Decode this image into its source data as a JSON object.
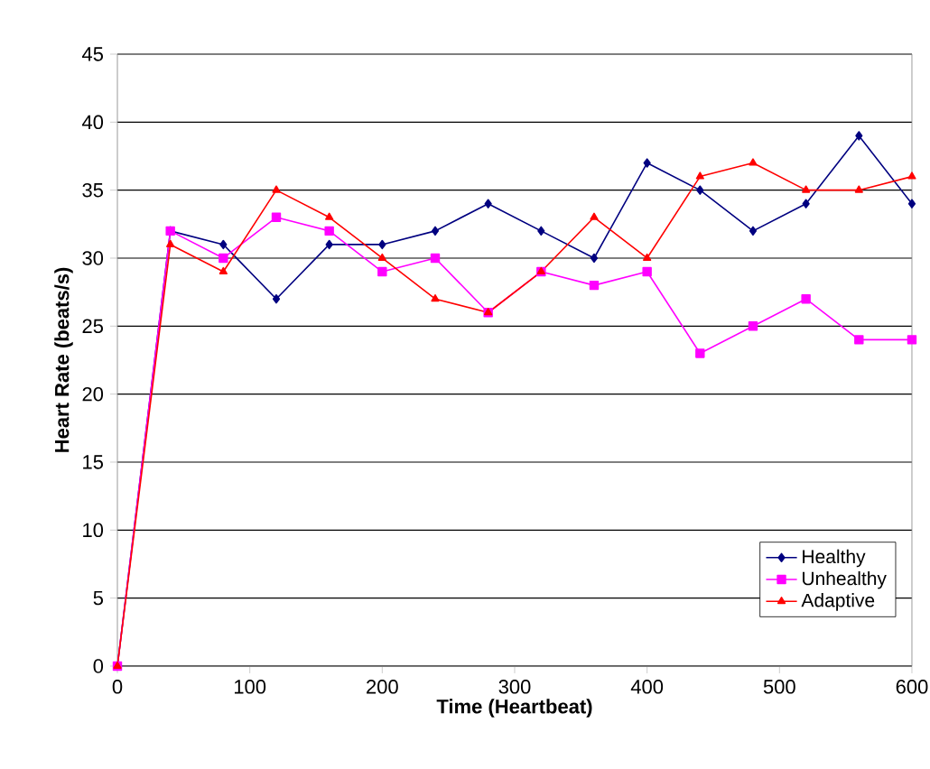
{
  "chart_data": {
    "type": "line",
    "xlabel": "Time (Heartbeat)",
    "ylabel": "Heart Rate (beats/s)",
    "x": [
      0,
      40,
      80,
      120,
      160,
      200,
      240,
      280,
      320,
      360,
      400,
      440,
      480,
      520,
      560,
      600
    ],
    "series": [
      {
        "name": "Healthy",
        "color": "#000080",
        "marker": "diamond",
        "values": [
          0,
          32,
          31,
          27,
          31,
          31,
          32,
          34,
          32,
          30,
          37,
          35,
          32,
          34,
          39,
          34
        ]
      },
      {
        "name": "Unhealthy",
        "color": "#ff00ff",
        "marker": "square",
        "values": [
          0,
          32,
          30,
          33,
          32,
          29,
          30,
          26,
          29,
          28,
          29,
          23,
          25,
          27,
          24,
          24
        ]
      },
      {
        "name": "Adaptive",
        "color": "#ff0000",
        "marker": "triangle",
        "values": [
          0,
          31,
          29,
          35,
          33,
          30,
          27,
          26,
          29,
          33,
          30,
          36,
          37,
          35,
          35,
          36
        ]
      }
    ],
    "xlim": [
      0,
      600
    ],
    "xticks": [
      0,
      100,
      200,
      300,
      400,
      500,
      600
    ],
    "ylim": [
      0,
      45
    ],
    "yticks": [
      0,
      5,
      10,
      15,
      20,
      25,
      30,
      35,
      40,
      45
    ],
    "grid": "y",
    "legend": "bottom right"
  }
}
